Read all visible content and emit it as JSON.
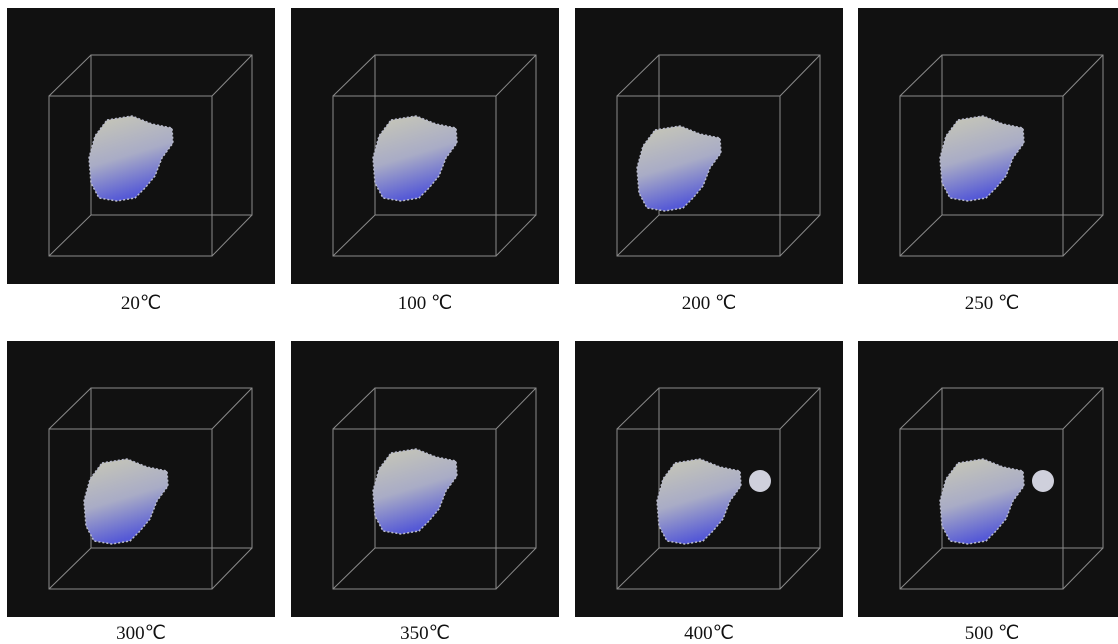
{
  "panels": [
    {
      "label": "20℃"
    },
    {
      "label": "100 ℃"
    },
    {
      "label": "200 ℃"
    },
    {
      "label": "250 ℃"
    },
    {
      "label": "300℃"
    },
    {
      "label": "350℃"
    },
    {
      "label": "400℃"
    },
    {
      "label": "500 ℃"
    }
  ]
}
